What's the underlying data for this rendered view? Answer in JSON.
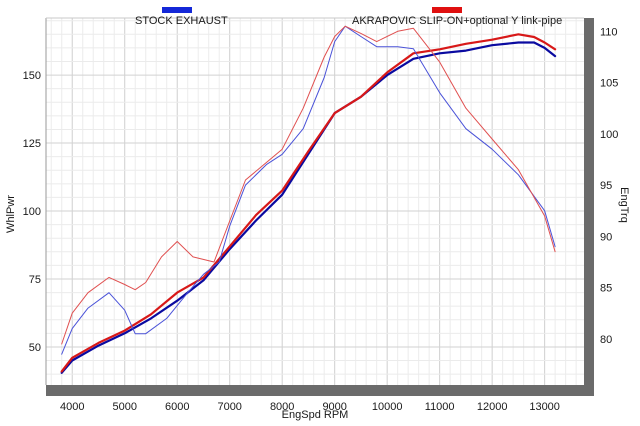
{
  "chart_data": {
    "type": "line",
    "xlabel": "EngSpd  RPM",
    "ylabel_left": "WhlPwr",
    "ylabel_right": "EngTrq",
    "xlim": [
      3500,
      13750
    ],
    "ylim_left": [
      36,
      171
    ],
    "ylim_right": [
      75.5,
      111.3
    ],
    "x_ticks": [
      4000,
      5000,
      6000,
      7000,
      8000,
      9000,
      10000,
      11000,
      12000,
      13000
    ],
    "y_left_ticks": [
      50,
      75,
      100,
      125,
      150
    ],
    "y_right_ticks": [
      80,
      85,
      90,
      95,
      100,
      105,
      110
    ],
    "grid": true,
    "legend": [
      {
        "name": "STOCK EXHAUST",
        "color": "#1428d8"
      },
      {
        "name": "AKRAPOVIC SLIP-ON+optional Y link-pipe",
        "color": "#e01010"
      }
    ],
    "series": [
      {
        "name": "STOCK EXHAUST",
        "quantity": "WhlPwr",
        "axis": "left",
        "color": "#0a0aa0",
        "x": [
          3800,
          4000,
          4500,
          5000,
          5500,
          6000,
          6500,
          7000,
          7500,
          8000,
          8500,
          9000,
          9500,
          10000,
          10500,
          11000,
          11500,
          12000,
          12500,
          12800,
          13000,
          13200
        ],
        "values": [
          40.5,
          45,
          50.5,
          55,
          60.5,
          67,
          74.5,
          86,
          96.5,
          106,
          121,
          136,
          142,
          150,
          156,
          158,
          159,
          161,
          162,
          162,
          160,
          157
        ]
      },
      {
        "name": "AKRAPOVIC SLIP-ON+optional Y link-pipe",
        "quantity": "WhlPwr",
        "axis": "left",
        "color": "#d81818",
        "x": [
          3800,
          4000,
          4500,
          5000,
          5500,
          6000,
          6500,
          7000,
          7500,
          8000,
          8500,
          9000,
          9500,
          10000,
          10500,
          11000,
          11500,
          12000,
          12500,
          12800,
          13000,
          13200
        ],
        "values": [
          41,
          46,
          51.5,
          56,
          62,
          70,
          75.5,
          87,
          98.5,
          107.5,
          122,
          136,
          142,
          151,
          158,
          159.5,
          161.5,
          163,
          165,
          164,
          162,
          159.5
        ]
      },
      {
        "name": "STOCK EXHAUST",
        "quantity": "EngTrq",
        "axis": "right",
        "color": "#4a52d8",
        "x": [
          3800,
          4000,
          4300,
          4700,
          5000,
          5200,
          5400,
          5800,
          6200,
          6500,
          6800,
          7000,
          7300,
          7700,
          8000,
          8400,
          8800,
          9000,
          9200,
          9500,
          9800,
          10200,
          10500,
          11000,
          11500,
          12000,
          12500,
          13000,
          13200
        ],
        "values": [
          78.5,
          81,
          83,
          84.5,
          82.8,
          80.5,
          80.5,
          82,
          84.5,
          86.3,
          87.5,
          91,
          95,
          97,
          98,
          100.5,
          105.5,
          109,
          110.5,
          109.5,
          108.5,
          108.5,
          108.3,
          104,
          100.5,
          98.5,
          96,
          92.5,
          89
        ]
      },
      {
        "name": "AKRAPOVIC SLIP-ON+optional Y link-pipe",
        "quantity": "EngTrq",
        "axis": "right",
        "color": "#e05050",
        "x": [
          3800,
          4000,
          4300,
          4700,
          5000,
          5200,
          5400,
          5700,
          6000,
          6300,
          6700,
          7000,
          7300,
          7700,
          8000,
          8400,
          8800,
          9000,
          9200,
          9500,
          9800,
          10200,
          10500,
          11000,
          11500,
          12000,
          12500,
          13000,
          13200
        ],
        "values": [
          79.5,
          82.5,
          84.5,
          86,
          85.3,
          84.8,
          85.5,
          88,
          89.5,
          88,
          87.5,
          91.5,
          95.5,
          97.2,
          98.5,
          102.5,
          107.5,
          109.5,
          110.5,
          109.8,
          109,
          110,
          110.3,
          107,
          102.5,
          99.5,
          96.5,
          92,
          88.5
        ]
      }
    ]
  }
}
